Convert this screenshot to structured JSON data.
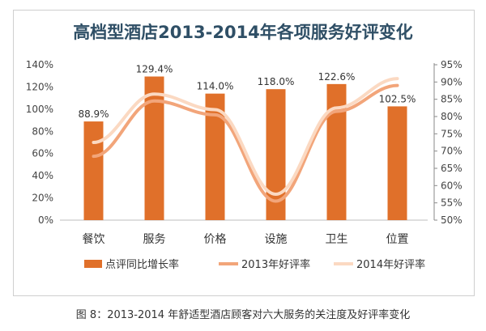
{
  "caption": "图 8：2013-2014 年舒适型酒店顾客对六大服务的关注度及好评率变化",
  "colors": {
    "bar": "#E0702A",
    "line2013": "#F2A57A",
    "line2014": "#FBD9C2",
    "title": "#2F4F66"
  },
  "chart_data": {
    "type": "bar+line",
    "title": "高档型酒店2013-2014年各项服务好评变化",
    "categories": [
      "餐饮",
      "服务",
      "价格",
      "设施",
      "卫生",
      "位置"
    ],
    "left_axis": {
      "min": 0,
      "max": 140,
      "step": 20,
      "ticks": [
        "0%",
        "20%",
        "40%",
        "60%",
        "80%",
        "100%",
        "120%",
        "140%"
      ]
    },
    "right_axis": {
      "min": 50,
      "max": 95,
      "step": 5,
      "ticks": [
        "50%",
        "55%",
        "60%",
        "65%",
        "70%",
        "75%",
        "80%",
        "85%",
        "90%",
        "95%"
      ]
    },
    "series": [
      {
        "name": "点评同比增长率",
        "type": "bar",
        "axis": "left",
        "values": [
          88.9,
          129.4,
          114.0,
          118.0,
          122.6,
          102.5
        ],
        "labels": [
          "88.9%",
          "129.4%",
          "114.0%",
          "118.0%",
          "122.6%",
          "102.5%"
        ]
      },
      {
        "name": "2013年好评率",
        "type": "line",
        "axis": "right",
        "values": [
          68.5,
          84.5,
          80.5,
          55.5,
          81.5,
          89.0
        ]
      },
      {
        "name": "2014年好评率",
        "type": "line",
        "axis": "right",
        "values": [
          72.5,
          86.5,
          82.0,
          57.5,
          82.5,
          91.0
        ]
      }
    ],
    "legend_position": "bottom",
    "grid": false
  }
}
